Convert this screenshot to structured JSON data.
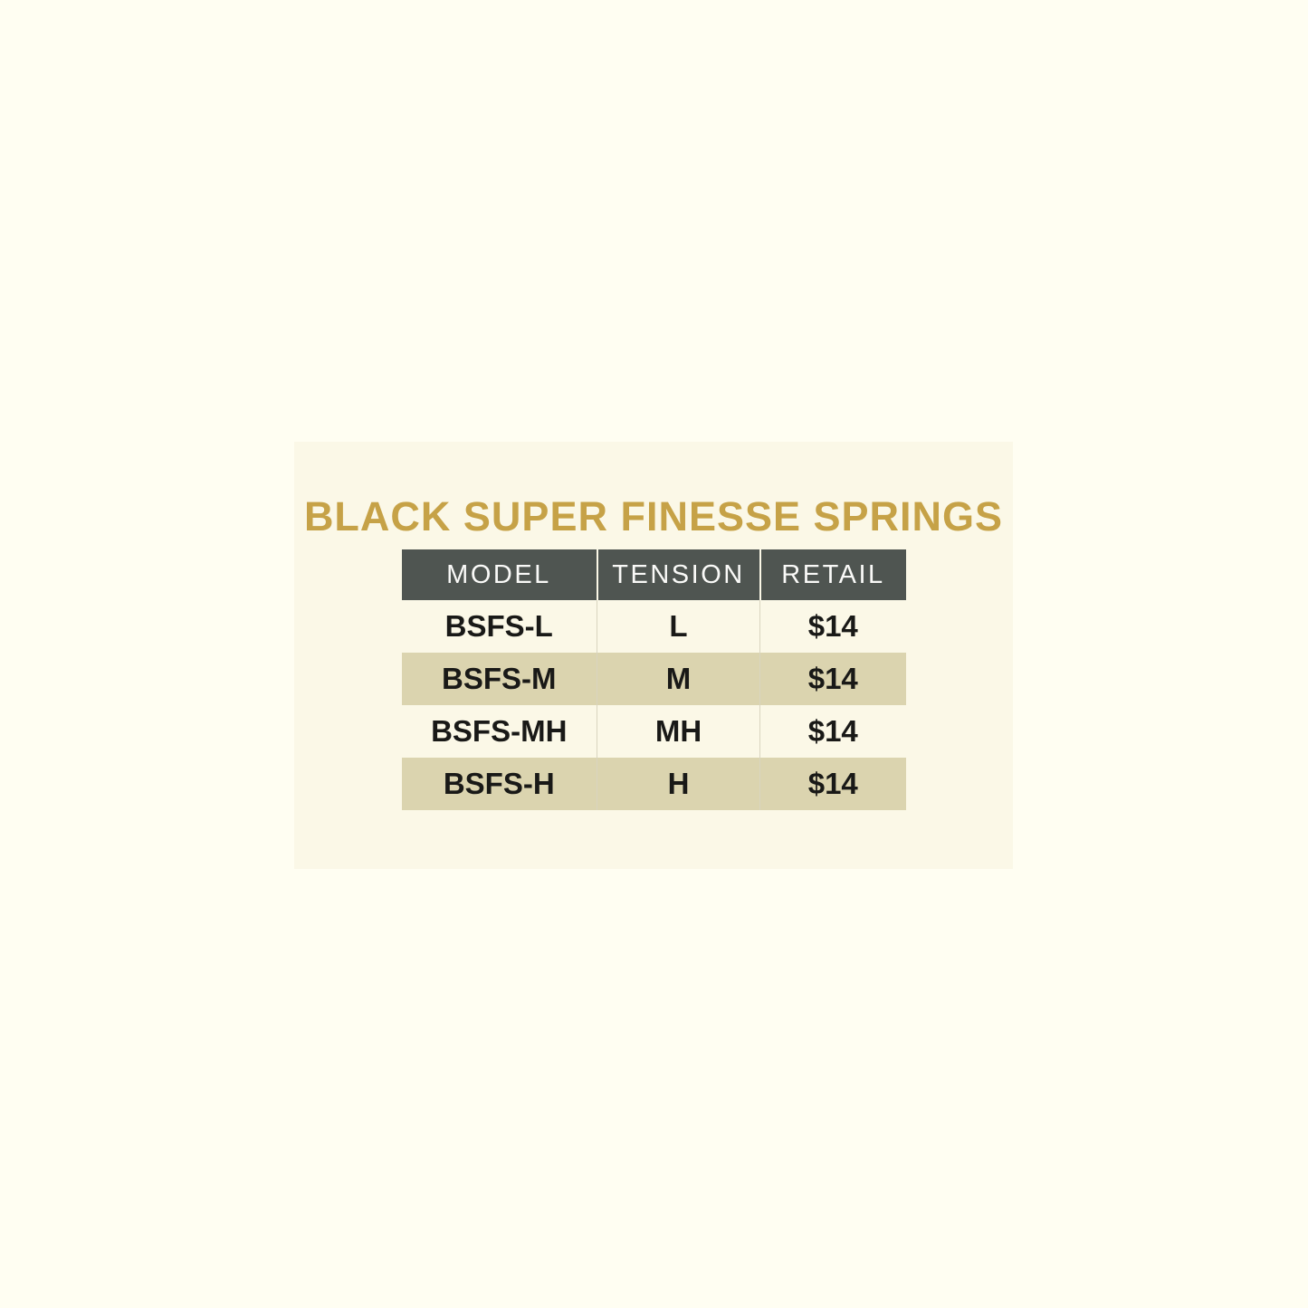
{
  "title": "BLACK SUPER FINESSE SPRINGS",
  "colors": {
    "page_background": "#FFFEF2",
    "card_background": "#FBF8E7",
    "header_background": "#4F5551",
    "header_text": "#FAFAF8",
    "stripe_beige": "#DBD4AF",
    "title_gold": "#C6A247",
    "body_text": "#191917"
  },
  "table": {
    "columns": [
      {
        "label": "MODEL"
      },
      {
        "label": "TENSION"
      },
      {
        "label": "RETAIL"
      }
    ],
    "rows": [
      {
        "model": "BSFS-L",
        "tension": "L",
        "retail": "$14"
      },
      {
        "model": "BSFS-M",
        "tension": "M",
        "retail": "$14"
      },
      {
        "model": "BSFS-MH",
        "tension": "MH",
        "retail": "$14"
      },
      {
        "model": "BSFS-H",
        "tension": "H",
        "retail": "$14"
      }
    ]
  }
}
